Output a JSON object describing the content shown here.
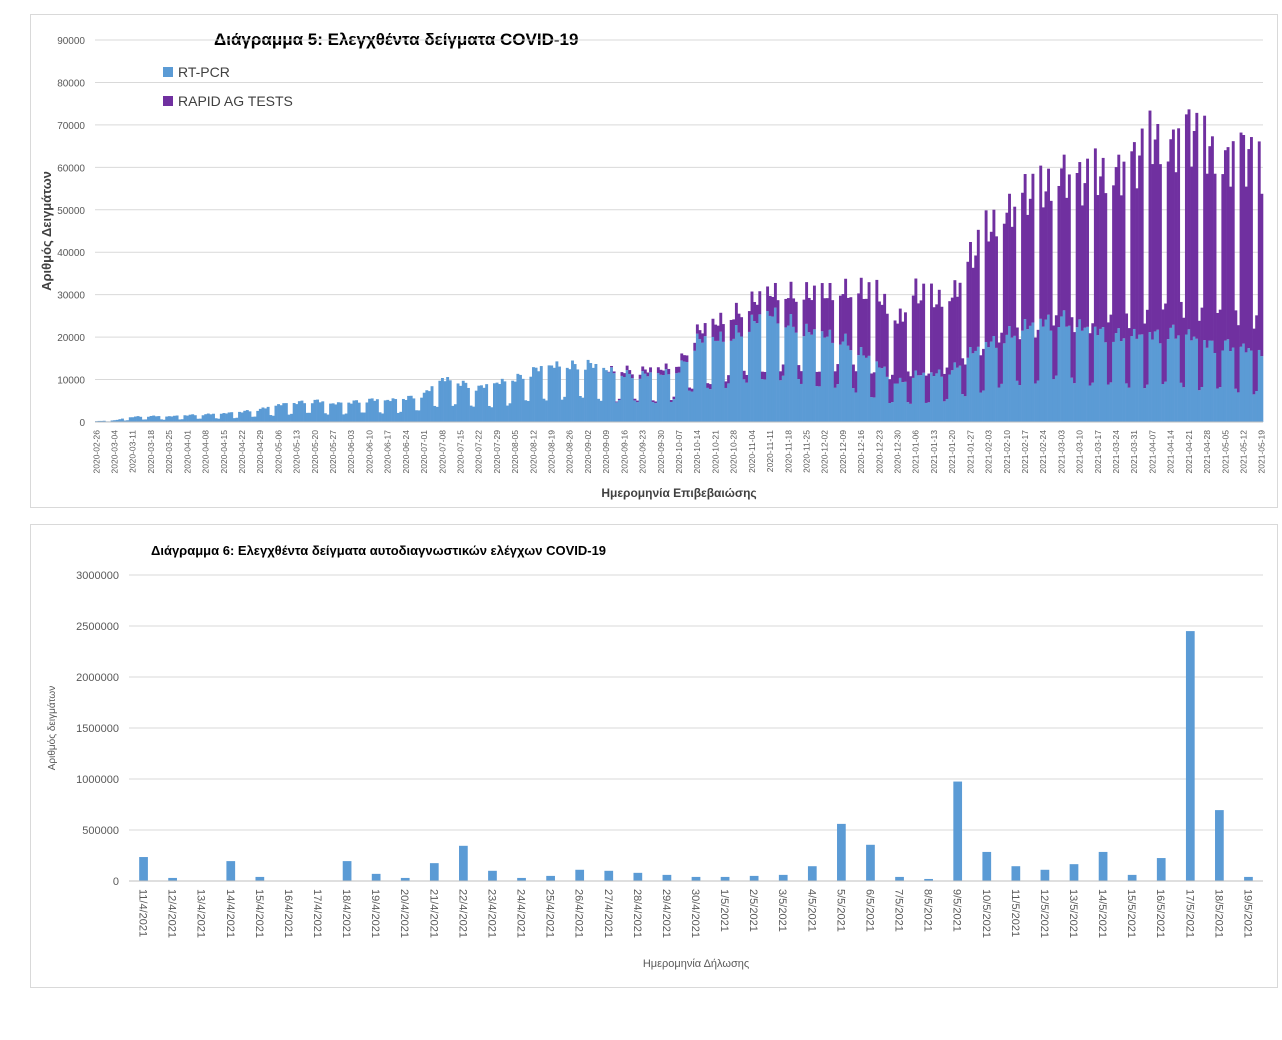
{
  "colors": {
    "rtpcr": "#5b9bd5",
    "rapid": "#7030a0",
    "bar2": "#5b9bd5",
    "grid": "#d9d9d9"
  },
  "chart_data": [
    {
      "type": "bar",
      "stacked": true,
      "title": "Διάγραμμα 5: Ελεγχθέντα δείγματα COVID-19",
      "xlabel": "Ημερομηνία Επιβεβαιώσης",
      "ylabel": "Αριθμός Δειγμάτων",
      "ylim": [
        0,
        90000
      ],
      "yticks": [
        0,
        10000,
        20000,
        30000,
        40000,
        50000,
        60000,
        70000,
        80000,
        90000
      ],
      "legend_position": "top-left",
      "x_range": [
        "2020-02-26",
        "2021-05-19"
      ],
      "xticks": [
        "2020-02-26",
        "2020-03-04",
        "2020-03-11",
        "2020-03-18",
        "2020-03-25",
        "2020-04-01",
        "2020-04-08",
        "2020-04-15",
        "2020-04-22",
        "2020-04-29",
        "2020-05-06",
        "2020-05-13",
        "2020-05-20",
        "2020-05-27",
        "2020-06-03",
        "2020-06-10",
        "2020-06-17",
        "2020-06-24",
        "2020-07-01",
        "2020-07-08",
        "2020-07-15",
        "2020-07-22",
        "2020-07-29",
        "2020-08-05",
        "2020-08-12",
        "2020-08-19",
        "2020-08-26",
        "2020-09-02",
        "2020-09-09",
        "2020-09-16",
        "2020-09-23",
        "2020-09-30",
        "2020-10-07",
        "2020-10-14",
        "2020-10-21",
        "2020-10-28",
        "2020-11-04",
        "2020-11-11",
        "2020-11-18",
        "2020-11-25",
        "2020-12-02",
        "2020-12-09",
        "2020-12-16",
        "2020-12-23",
        "2020-12-30",
        "2021-01-06",
        "2021-01-13",
        "2021-01-20",
        "2021-01-27",
        "2021-02-03",
        "2021-02-10",
        "2021-02-17",
        "2021-02-24",
        "2021-03-03",
        "2021-03-10",
        "2021-03-17",
        "2021-03-24",
        "2021-03-31",
        "2021-04-07",
        "2021-04-14",
        "2021-04-21",
        "2021-04-28",
        "2021-05-05",
        "2021-05-12",
        "2021-05-19"
      ],
      "series": [
        {
          "name": "RT-PCR",
          "weekly_anchor_values": [
            200,
            400,
            1200,
            1400,
            1300,
            1600,
            1800,
            2000,
            2400,
            3000,
            4000,
            4500,
            5000,
            4200,
            4600,
            5200,
            5000,
            5500,
            6500,
            10000,
            9000,
            8000,
            9000,
            10000,
            12000,
            13000,
            13000,
            13500,
            12000,
            11000,
            11000,
            11000,
            12000,
            19000,
            19000,
            20000,
            23000,
            25000,
            23000,
            21000,
            20000,
            19000,
            16000,
            13000,
            9000,
            11000,
            11000,
            12000,
            16000,
            18000,
            20000,
            22000,
            23000,
            24000,
            22000,
            21000,
            20000,
            20000,
            20000,
            21000,
            20000,
            18000,
            18000,
            17000,
            16000
          ]
        },
        {
          "name": "RAPID AG TESTS",
          "weekly_anchor_values": [
            0,
            0,
            0,
            0,
            0,
            0,
            0,
            0,
            0,
            0,
            0,
            0,
            0,
            0,
            0,
            0,
            0,
            0,
            0,
            0,
            0,
            0,
            0,
            0,
            0,
            0,
            0,
            0,
            0,
            1000,
            1000,
            1200,
            1500,
            2000,
            4000,
            5000,
            5000,
            5000,
            7000,
            9000,
            10000,
            12000,
            15000,
            17000,
            15000,
            20000,
            18000,
            18000,
            23000,
            28000,
            30000,
            32000,
            32000,
            36000,
            35000,
            38000,
            40000,
            42000,
            48000,
            45000,
            50000,
            48000,
            45000,
            48000,
            45000
          ]
        }
      ]
    },
    {
      "type": "bar",
      "title": "Διάγραμμα 6: Ελεγχθέντα δείγματα αυτοδιαγνωστικών ελέγχων COVID-19",
      "xlabel": "Ημερομηνία Δήλωσης",
      "ylabel": "Αριθμός δειγμάτων",
      "ylim": [
        0,
        3000000
      ],
      "yticks": [
        0,
        500000,
        1000000,
        1500000,
        2000000,
        2500000,
        3000000
      ],
      "categories": [
        "11/4/2021",
        "12/4/2021",
        "13/4/2021",
        "14/4/2021",
        "15/4/2021",
        "16/4/2021",
        "17/4/2021",
        "18/4/2021",
        "19/4/2021",
        "20/4/2021",
        "21/4/2021",
        "22/4/2021",
        "23/4/2021",
        "24/4/2021",
        "25/4/2021",
        "26/4/2021",
        "27/4/2021",
        "28/4/2021",
        "29/4/2021",
        "30/4/2021",
        "1/5/2021",
        "2/5/2021",
        "3/5/2021",
        "4/5/2021",
        "5/5/2021",
        "6/5/2021",
        "7/5/2021",
        "8/5/2021",
        "9/5/2021",
        "10/5/2021",
        "11/5/2021",
        "12/5/2021",
        "13/5/2021",
        "14/5/2021",
        "15/5/2021",
        "16/5/2021",
        "17/5/2021",
        "18/5/2021",
        "19/5/2021"
      ],
      "values": [
        235000,
        30000,
        0,
        195000,
        40000,
        0,
        0,
        195000,
        70000,
        30000,
        175000,
        345000,
        100000,
        30000,
        50000,
        110000,
        100000,
        80000,
        60000,
        40000,
        40000,
        50000,
        60000,
        145000,
        560000,
        355000,
        40000,
        20000,
        975000,
        285000,
        145000,
        110000,
        165000,
        285000,
        60000,
        225000,
        2450000,
        695000,
        40000
      ]
    }
  ]
}
